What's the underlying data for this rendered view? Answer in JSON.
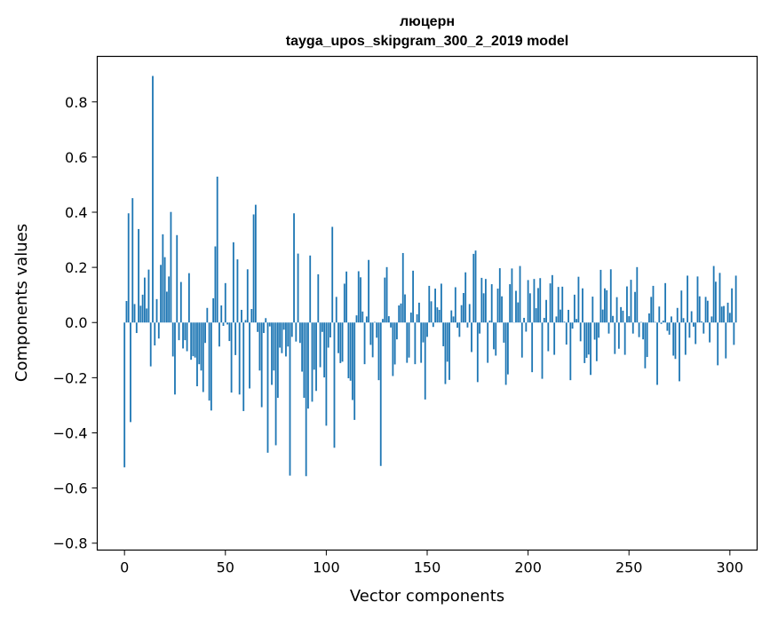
{
  "chart_data": {
    "type": "bar",
    "title": "люцерн",
    "subtitle": "tayga_upos_skipgram_300_2_2019 model",
    "xlabel": "Vector components",
    "ylabel": "Components values",
    "xlim": [
      -13.5,
      313.5
    ],
    "ylim": [
      -0.825,
      0.965
    ],
    "xticks": [
      0,
      50,
      100,
      150,
      200,
      250,
      300
    ],
    "yticks": [
      -0.8,
      -0.6,
      -0.4,
      -0.2,
      0.0,
      0.2,
      0.4,
      0.6,
      0.8
    ],
    "ytick_labels": [
      "−0.8",
      "−0.6",
      "−0.4",
      "−0.2",
      "0.0",
      "0.2",
      "0.4",
      "0.6",
      "0.8"
    ],
    "bar_color": "#1f77b4",
    "grid": false,
    "values": [
      -0.525,
      0.078,
      0.396,
      -0.361,
      0.451,
      0.067,
      -0.038,
      0.339,
      0.061,
      0.101,
      0.163,
      0.051,
      0.192,
      -0.159,
      0.894,
      -0.083,
      0.085,
      -0.058,
      0.209,
      0.32,
      0.237,
      0.112,
      0.167,
      0.401,
      -0.123,
      -0.261,
      0.317,
      -0.064,
      0.147,
      -0.094,
      -0.064,
      -0.104,
      0.179,
      -0.135,
      -0.122,
      -0.127,
      -0.231,
      -0.151,
      -0.174,
      -0.252,
      -0.074,
      0.053,
      -0.283,
      -0.319,
      0.088,
      0.276,
      0.529,
      -0.087,
      0.062,
      -0.012,
      0.143,
      -0.007,
      -0.067,
      -0.254,
      0.291,
      -0.118,
      0.229,
      -0.261,
      0.046,
      -0.321,
      0.009,
      0.193,
      -0.239,
      0.049,
      0.392,
      0.427,
      -0.034,
      -0.174,
      -0.307,
      -0.038,
      0.016,
      -0.472,
      -0.014,
      -0.226,
      -0.174,
      -0.445,
      -0.273,
      -0.091,
      -0.111,
      -0.026,
      -0.123,
      -0.087,
      -0.555,
      -0.052,
      0.396,
      -0.069,
      0.25,
      -0.074,
      -0.178,
      -0.273,
      -0.557,
      -0.312,
      0.243,
      -0.287,
      -0.171,
      -0.248,
      0.175,
      -0.162,
      -0.034,
      -0.199,
      -0.374,
      -0.091,
      -0.054,
      0.347,
      -0.454,
      0.093,
      -0.111,
      -0.147,
      -0.142,
      0.141,
      0.185,
      -0.202,
      -0.211,
      -0.281,
      -0.353,
      0.026,
      0.186,
      0.164,
      0.04,
      -0.151,
      0.022,
      0.227,
      -0.081,
      -0.126,
      0.002,
      -0.055,
      -0.209,
      -0.52,
      0.013,
      0.163,
      0.201,
      0.023,
      -0.018,
      -0.194,
      -0.152,
      -0.061,
      0.062,
      0.069,
      0.252,
      0.102,
      -0.146,
      -0.127,
      0.036,
      0.188,
      -0.151,
      0.03,
      0.072,
      -0.146,
      -0.072,
      -0.279,
      -0.052,
      0.133,
      0.077,
      -0.016,
      0.123,
      0.055,
      0.046,
      0.141,
      -0.086,
      -0.223,
      -0.142,
      -0.208,
      0.044,
      0.022,
      0.128,
      -0.019,
      -0.052,
      0.063,
      0.107,
      0.182,
      -0.018,
      0.067,
      -0.107,
      0.249,
      0.261,
      -0.216,
      -0.04,
      0.162,
      0.106,
      0.158,
      -0.146,
      0.007,
      0.139,
      -0.097,
      -0.12,
      0.123,
      0.197,
      0.095,
      -0.073,
      -0.226,
      -0.188,
      0.139,
      0.196,
      0.001,
      0.115,
      0.073,
      0.205,
      -0.127,
      0.017,
      -0.033,
      0.154,
      0.106,
      -0.18,
      0.158,
      0.052,
      0.125,
      0.161,
      -0.204,
      0.017,
      0.082,
      -0.104,
      0.142,
      0.172,
      -0.117,
      0.022,
      0.129,
      0.047,
      0.13,
      0.003,
      -0.08,
      0.046,
      -0.209,
      -0.022,
      0.101,
      0.013,
      0.166,
      -0.068,
      0.124,
      -0.147,
      -0.128,
      -0.116,
      -0.19,
      0.094,
      -0.062,
      -0.14,
      -0.055,
      0.191,
      0.047,
      0.124,
      0.117,
      -0.04,
      0.193,
      0.024,
      -0.114,
      0.092,
      -0.095,
      0.056,
      0.043,
      -0.117,
      0.131,
      0.023,
      0.155,
      -0.04,
      0.111,
      0.201,
      -0.053,
      0.002,
      -0.061,
      -0.166,
      -0.125,
      0.033,
      0.093,
      0.133,
      0.002,
      -0.226,
      0.058,
      -0.005,
      0.007,
      0.143,
      -0.03,
      -0.044,
      0.022,
      -0.12,
      -0.132,
      0.053,
      -0.213,
      0.116,
      0.016,
      -0.117,
      0.17,
      -0.055,
      0.041,
      -0.015,
      -0.078,
      0.167,
      0.095,
      0.004,
      -0.04,
      0.093,
      0.079,
      -0.072,
      0.022,
      0.205,
      0.148,
      -0.155,
      0.18,
      0.058,
      0.06,
      -0.13,
      0.072,
      0.035,
      0.124,
      -0.081,
      0.17
    ]
  }
}
